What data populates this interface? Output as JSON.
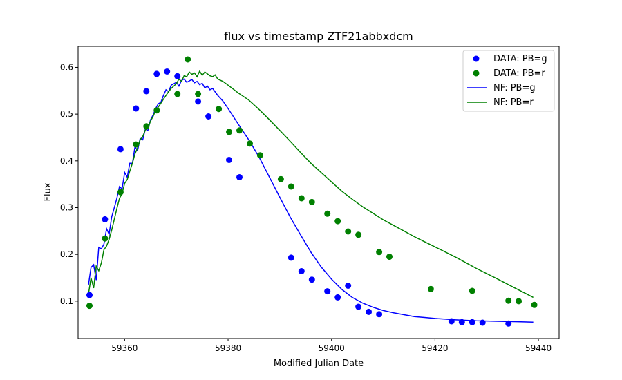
{
  "chart_data": {
    "type": "scatter",
    "title": "flux vs timestamp ZTF21abbxdcm",
    "xlabel": "Modified Julian Date",
    "ylabel": "Flux",
    "xlim": [
      59351,
      59444
    ],
    "ylim": [
      0.02,
      0.645
    ],
    "xticks": [
      59360,
      59380,
      59400,
      59420,
      59440
    ],
    "yticks": [
      0.1,
      0.2,
      0.3,
      0.4,
      0.5,
      0.6
    ],
    "grid": false,
    "legend_position": "top-right",
    "colors": {
      "g": "#0000ff",
      "r": "#008000"
    },
    "series": [
      {
        "name": "DATA: PB=g",
        "kind": "scatter",
        "color": "#0000ff",
        "x": [
          59353.2,
          59356.2,
          59359.2,
          59362.2,
          59364.2,
          59366.2,
          59368.2,
          59370.2,
          59374.2,
          59376.2,
          59380.2,
          59382.2,
          59392.2,
          59394.2,
          59396.2,
          59399.2,
          59401.2,
          59403.2,
          59405.2,
          59407.2,
          59409.2,
          59423.2,
          59425.2,
          59427.2,
          59429.2,
          59434.2
        ],
        "y": [
          0.113,
          0.275,
          0.425,
          0.512,
          0.549,
          0.586,
          0.591,
          0.581,
          0.527,
          0.495,
          0.402,
          0.365,
          0.193,
          0.164,
          0.146,
          0.121,
          0.108,
          0.133,
          0.088,
          0.077,
          0.072,
          0.057,
          0.055,
          0.055,
          0.054,
          0.052
        ]
      },
      {
        "name": "DATA: PB=r",
        "kind": "scatter",
        "color": "#008000",
        "x": [
          59353.2,
          59356.2,
          59359.2,
          59362.2,
          59364.2,
          59366.2,
          59370.2,
          59372.2,
          59374.2,
          59378.2,
          59380.2,
          59382.2,
          59384.2,
          59386.2,
          59390.2,
          59392.2,
          59394.2,
          59396.2,
          59399.2,
          59401.2,
          59403.2,
          59405.2,
          59409.2,
          59411.2,
          59419.2,
          59427.2,
          59434.2,
          59436.2,
          59439.2
        ],
        "y": [
          0.09,
          0.234,
          0.333,
          0.435,
          0.474,
          0.508,
          0.543,
          0.617,
          0.543,
          0.511,
          0.462,
          0.465,
          0.437,
          0.412,
          0.361,
          0.345,
          0.32,
          0.312,
          0.287,
          0.271,
          0.249,
          0.242,
          0.205,
          0.195,
          0.126,
          0.122,
          0.101,
          0.1,
          0.092
        ]
      },
      {
        "name": "NF: PB=g",
        "kind": "line",
        "color": "#0000ff",
        "x": [
          59353,
          59353.5,
          59354,
          59354.5,
          59355,
          59355.5,
          59356,
          59356.5,
          59357,
          59357.5,
          59358,
          59358.5,
          59359,
          59359.5,
          59360,
          59360.5,
          59361,
          59361.5,
          59362,
          59362.5,
          59363,
          59363.5,
          59364,
          59364.5,
          59365,
          59365.5,
          59366,
          59366.5,
          59367,
          59367.5,
          59368,
          59368.5,
          59369,
          59369.5,
          59370,
          59370.5,
          59371,
          59371.5,
          59372,
          59372.5,
          59373,
          59373.5,
          59374,
          59374.5,
          59375,
          59375.5,
          59376,
          59376.5,
          59377,
          59378,
          59379,
          59380,
          59382,
          59384,
          59386,
          59388,
          59390,
          59392,
          59394,
          59396,
          59398,
          59400,
          59402,
          59404,
          59406,
          59408,
          59410,
          59412,
          59414,
          59416,
          59418,
          59420,
          59424,
          59428,
          59432,
          59436,
          59439
        ],
        "y": [
          0.135,
          0.172,
          0.178,
          0.145,
          0.215,
          0.212,
          0.222,
          0.255,
          0.243,
          0.28,
          0.3,
          0.32,
          0.345,
          0.34,
          0.375,
          0.365,
          0.395,
          0.395,
          0.43,
          0.422,
          0.448,
          0.445,
          0.468,
          0.465,
          0.488,
          0.498,
          0.512,
          0.522,
          0.525,
          0.54,
          0.552,
          0.548,
          0.562,
          0.565,
          0.568,
          0.56,
          0.572,
          0.575,
          0.568,
          0.571,
          0.574,
          0.567,
          0.57,
          0.563,
          0.566,
          0.556,
          0.56,
          0.552,
          0.555,
          0.54,
          0.528,
          0.512,
          0.478,
          0.445,
          0.408,
          0.365,
          0.322,
          0.28,
          0.242,
          0.205,
          0.173,
          0.147,
          0.125,
          0.108,
          0.096,
          0.087,
          0.08,
          0.075,
          0.071,
          0.067,
          0.065,
          0.063,
          0.06,
          0.058,
          0.057,
          0.056,
          0.055
        ]
      },
      {
        "name": "NF: PB=r",
        "kind": "line",
        "color": "#008000",
        "x": [
          59353,
          59353.5,
          59354,
          59354.5,
          59355,
          59355.5,
          59356,
          59356.5,
          59357,
          59357.5,
          59358,
          59358.5,
          59359,
          59359.5,
          59360,
          59360.5,
          59361,
          59361.5,
          59362,
          59362.5,
          59363,
          59363.5,
          59364,
          59364.5,
          59365,
          59365.5,
          59366,
          59366.5,
          59367,
          59367.5,
          59368,
          59368.5,
          59369,
          59369.5,
          59370,
          59370.5,
          59371,
          59371.5,
          59372,
          59372.5,
          59373,
          59373.5,
          59374,
          59374.5,
          59375,
          59375.5,
          59376,
          59376.5,
          59377,
          59377.5,
          59378,
          59379,
          59380,
          59382,
          59384,
          59386,
          59388,
          59390,
          59392,
          59394,
          59396,
          59398,
          59400,
          59402,
          59404,
          59406,
          59408,
          59410,
          59412,
          59414,
          59416,
          59418,
          59420,
          59424,
          59428,
          59432,
          59436,
          59439
        ],
        "y": [
          0.115,
          0.15,
          0.128,
          0.175,
          0.165,
          0.182,
          0.21,
          0.218,
          0.232,
          0.252,
          0.275,
          0.298,
          0.32,
          0.33,
          0.352,
          0.36,
          0.378,
          0.395,
          0.415,
          0.428,
          0.445,
          0.452,
          0.466,
          0.47,
          0.485,
          0.495,
          0.508,
          0.515,
          0.523,
          0.532,
          0.54,
          0.548,
          0.555,
          0.56,
          0.565,
          0.575,
          0.57,
          0.582,
          0.58,
          0.59,
          0.585,
          0.588,
          0.58,
          0.592,
          0.583,
          0.59,
          0.586,
          0.582,
          0.58,
          0.584,
          0.575,
          0.57,
          0.562,
          0.545,
          0.53,
          0.51,
          0.488,
          0.465,
          0.442,
          0.418,
          0.395,
          0.375,
          0.355,
          0.335,
          0.318,
          0.302,
          0.288,
          0.274,
          0.262,
          0.25,
          0.238,
          0.227,
          0.216,
          0.194,
          0.17,
          0.148,
          0.125,
          0.108
        ]
      }
    ]
  }
}
